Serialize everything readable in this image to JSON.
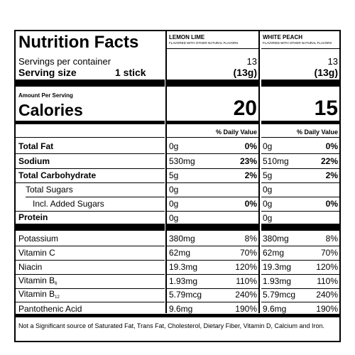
{
  "header": {
    "title": "Nutrition Facts",
    "servings_label": "Servings per container",
    "serving_size_label": "Serving size",
    "serving_size_value": "1 stick"
  },
  "products": [
    {
      "name": "LEMON LIME",
      "subtitle": "FLAVORED WITH OTHER NATURAL FLAVORS",
      "servings": "13",
      "serving_size": "(13g)",
      "calories": "20"
    },
    {
      "name": "WHITE PEACH",
      "subtitle": "FLAVORED WITH OTHER NATURAL FLAVORS",
      "servings": "13",
      "serving_size": "(13g)",
      "calories": "15"
    }
  ],
  "amount_per_serving": "Amount Per Serving",
  "calories_label": "Calories",
  "daily_value_header": "% Daily Value",
  "rows": [
    {
      "label": "Total Fat",
      "a": "0g",
      "ap": "0%",
      "b": "0g",
      "bp": "0%"
    },
    {
      "label": "Sodium",
      "a": "530mg",
      "ap": "23%",
      "b": "510mg",
      "bp": "22%"
    },
    {
      "label": "Total Carbohydrate",
      "a": "5g",
      "ap": "2%",
      "b": "5g",
      "bp": "2%"
    },
    {
      "label": "Total Sugars",
      "a": "0g",
      "ap": "",
      "b": "0g",
      "bp": ""
    },
    {
      "label": "Incl. Added Sugars",
      "a": "0g",
      "ap": "0%",
      "b": "0g",
      "bp": "0%"
    },
    {
      "label": "Protein",
      "a": "0g",
      "ap": "",
      "b": "0g",
      "bp": ""
    },
    {
      "label": "Potassium",
      "a": "380mg",
      "ap": "8%",
      "b": "380mg",
      "bp": "8%"
    },
    {
      "label": "Vitamin C",
      "a": "62mg",
      "ap": "70%",
      "b": "62mg",
      "bp": "70%"
    },
    {
      "label": "Niacin",
      "a": "19.3mg",
      "ap": "120%",
      "b": "19.3mg",
      "bp": "120%"
    },
    {
      "label": "Vitamin B",
      "sub": "6",
      "a": "1.93mg",
      "ap": "110%",
      "b": "1.93mg",
      "bp": "110%"
    },
    {
      "label": "Vitamin B",
      "sub": "12",
      "a": "5.79mcg",
      "ap": "240%",
      "b": "5.79mcg",
      "bp": "240%"
    },
    {
      "label": "Pantothenic Acid",
      "a": "9.6mg",
      "ap": "190%",
      "b": "9.6mg",
      "bp": "190%"
    }
  ],
  "footnote": "Not a Significant source of Saturated Fat, Trans Fat, Cholesterol, Dietary Fiber, Vitamin D, Calcium and Iron."
}
